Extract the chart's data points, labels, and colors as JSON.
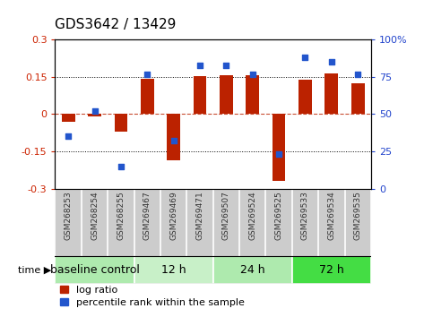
{
  "title": "GDS3642 / 13429",
  "samples": [
    "GSM268253",
    "GSM268254",
    "GSM268255",
    "GSM269467",
    "GSM269469",
    "GSM269471",
    "GSM269507",
    "GSM269524",
    "GSM269525",
    "GSM269533",
    "GSM269534",
    "GSM269535"
  ],
  "log_ratio": [
    -0.03,
    -0.01,
    -0.07,
    0.142,
    -0.185,
    0.153,
    0.157,
    0.155,
    -0.27,
    0.138,
    0.165,
    0.125
  ],
  "percentile_rank": [
    35,
    52,
    15,
    77,
    32,
    83,
    83,
    77,
    23,
    88,
    85,
    77
  ],
  "groups": [
    {
      "label": "baseline control",
      "start": 0,
      "end": 3,
      "color": "#aeeaae"
    },
    {
      "label": "12 h",
      "start": 3,
      "end": 6,
      "color": "#c8f0c8"
    },
    {
      "label": "24 h",
      "start": 6,
      "end": 9,
      "color": "#aeeaae"
    },
    {
      "label": "72 h",
      "start": 9,
      "end": 12,
      "color": "#44dd44"
    }
  ],
  "bar_color": "#bb2200",
  "dot_color": "#2255cc",
  "ylim_left": [
    -0.3,
    0.3
  ],
  "ylim_right": [
    0,
    100
  ],
  "yticks_left": [
    -0.3,
    -0.15,
    0,
    0.15,
    0.3
  ],
  "yticks_right": [
    0,
    25,
    50,
    75,
    100
  ],
  "hlines_dotted": [
    -0.15,
    0.15
  ],
  "hline_zero": 0,
  "bg_color": "#ffffff",
  "plot_bg": "#ffffff",
  "tick_label_color_left": "#cc2200",
  "tick_label_color_right": "#2244cc",
  "title_fontsize": 11,
  "tick_fontsize": 8,
  "legend_fontsize": 8,
  "group_label_fontsize": 9,
  "sample_fontsize": 6.5,
  "sample_label_color": "#333333",
  "sample_bg_color": "#cccccc",
  "time_label": "time ▶"
}
